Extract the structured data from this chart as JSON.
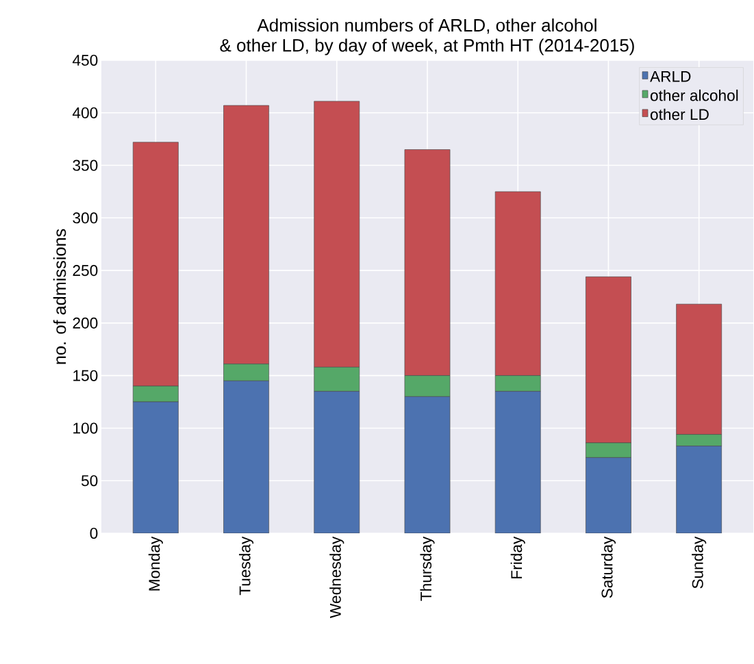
{
  "chart_data": {
    "type": "bar",
    "title": "Admission numbers of ARLD, other alcohol\n& other LD, by day of week, at Pmth HT (2014-2015)",
    "ylabel": "no. of admissions",
    "categories": [
      "Monday",
      "Tuesday",
      "Wednesday",
      "Thursday",
      "Friday",
      "Saturday",
      "Sunday"
    ],
    "series": [
      {
        "name": "ARLD",
        "color": "#4c72b0",
        "values": [
          125,
          145,
          135,
          130,
          135,
          72,
          83
        ]
      },
      {
        "name": "other alcohol",
        "color": "#55a868",
        "values": [
          15,
          16,
          23,
          20,
          15,
          14,
          11
        ]
      },
      {
        "name": "other LD",
        "color": "#c44e52",
        "values": [
          232,
          246,
          253,
          215,
          175,
          158,
          124
        ]
      }
    ],
    "stacked": true,
    "ylim": [
      0,
      450
    ],
    "yticks": [
      0,
      50,
      100,
      150,
      200,
      250,
      300,
      350,
      400,
      450
    ],
    "grid": true,
    "legend": "top right"
  }
}
